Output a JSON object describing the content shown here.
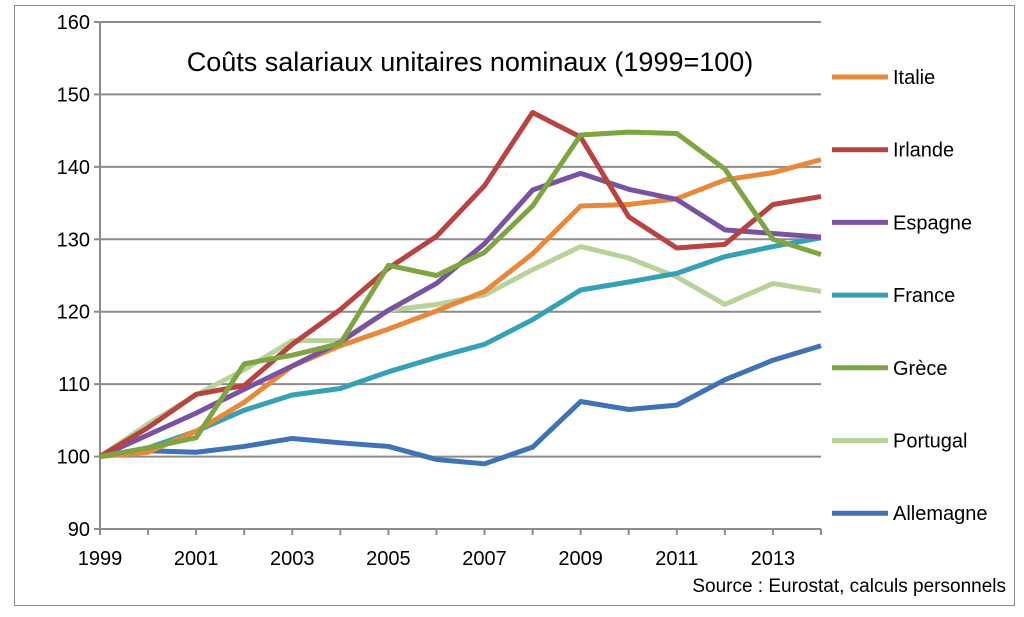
{
  "chart_data": {
    "type": "line",
    "title": "Coûts salariaux unitaires nominaux (1999=100)",
    "source": "Source : Eurostat, calculs personnels",
    "x": [
      1999,
      2000,
      2001,
      2002,
      2003,
      2004,
      2005,
      2006,
      2007,
      2008,
      2009,
      2010,
      2011,
      2012,
      2013,
      2014
    ],
    "x_tick_labels": [
      "1999",
      "2001",
      "2003",
      "2005",
      "2007",
      "2009",
      "2011",
      "2013"
    ],
    "y_tick_labels": [
      "90",
      "100",
      "110",
      "120",
      "130",
      "140",
      "150",
      "160"
    ],
    "ylim": [
      90,
      160
    ],
    "xlim": [
      1999,
      2014
    ],
    "grid": "horizontal",
    "legend_placement": "right",
    "series": [
      {
        "name": "Italie",
        "color": "#E8883A",
        "values": [
          100,
          100.6,
          103.5,
          107.5,
          112.5,
          115.3,
          117.6,
          120.1,
          122.8,
          128.0,
          134.6,
          134.8,
          135.6,
          138.2,
          139.2,
          141.0
        ]
      },
      {
        "name": "Irlande",
        "color": "#B84441",
        "values": [
          100,
          104.0,
          108.6,
          109.8,
          115.5,
          120.3,
          126.0,
          130.4,
          137.4,
          147.5,
          144.1,
          133.1,
          128.8,
          129.3,
          134.8,
          135.9
        ]
      },
      {
        "name": "Espagne",
        "color": "#7953A0",
        "values": [
          100,
          103.0,
          106.0,
          109.3,
          112.5,
          115.8,
          120.2,
          123.9,
          129.4,
          136.8,
          139.1,
          136.9,
          135.5,
          131.3,
          130.8,
          130.3
        ]
      },
      {
        "name": "France",
        "color": "#36A0B5",
        "values": [
          100,
          101.2,
          103.5,
          106.4,
          108.5,
          109.4,
          111.7,
          113.7,
          115.5,
          118.9,
          123.0,
          124.1,
          125.3,
          127.6,
          129.0,
          130.2
        ]
      },
      {
        "name": "Grèce",
        "color": "#7EA542",
        "values": [
          100,
          101.2,
          102.6,
          112.8,
          114.0,
          115.6,
          126.4,
          125.0,
          128.2,
          134.6,
          144.4,
          144.8,
          144.6,
          139.7,
          130.0,
          127.9
        ]
      },
      {
        "name": "Portugal",
        "color": "#B8D39A",
        "values": [
          100,
          104.5,
          108.5,
          112.0,
          116.0,
          116.0,
          120.2,
          121.0,
          122.3,
          125.8,
          129.0,
          127.4,
          124.8,
          121.0,
          123.9,
          122.8
        ]
      },
      {
        "name": "Allemagne",
        "color": "#3F73B3",
        "values": [
          100,
          100.8,
          100.6,
          101.4,
          102.5,
          101.9,
          101.4,
          99.6,
          99.0,
          101.3,
          107.6,
          106.5,
          107.1,
          110.6,
          113.3,
          115.3
        ]
      }
    ]
  }
}
